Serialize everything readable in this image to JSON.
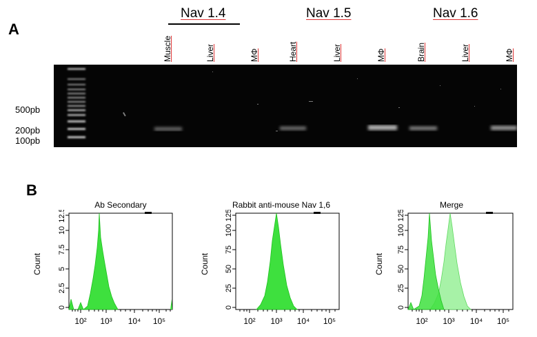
{
  "panel_a": {
    "letter": "A",
    "groups": [
      {
        "label": "Nav 1.4",
        "lanes": [
          "Muscle",
          "Liver",
          "MΦ"
        ]
      },
      {
        "label": "Nav 1.5",
        "lanes": [
          "Heart",
          "Liver",
          "MΦ"
        ]
      },
      {
        "label": "Nav 1.6",
        "lanes": [
          "Brain",
          "Liver",
          "MΦ"
        ]
      }
    ],
    "size_markers": [
      "500pb",
      "200pb",
      "100pb"
    ]
  },
  "panel_b": {
    "letter": "B",
    "histograms": [
      {
        "title": "Ab Secondary",
        "ylabel": "Count",
        "y_ticks": [
          "0",
          "2.5",
          "5",
          "7.5",
          "10",
          "12.5"
        ]
      },
      {
        "title": "Rabbit anti-mouse Nav 1,6",
        "ylabel": "Count",
        "y_ticks": [
          "0",
          "25",
          "50",
          "75",
          "100",
          "125"
        ]
      },
      {
        "title": "Merge",
        "ylabel": "Count",
        "y_ticks": [
          "0",
          "25",
          "50",
          "75",
          "100",
          "125"
        ]
      }
    ],
    "x_ticks": [
      "10²",
      "10³",
      "10⁴",
      "10⁵"
    ],
    "colors": {
      "primary": "#22d022",
      "overlay": "#9ff29f"
    }
  }
}
